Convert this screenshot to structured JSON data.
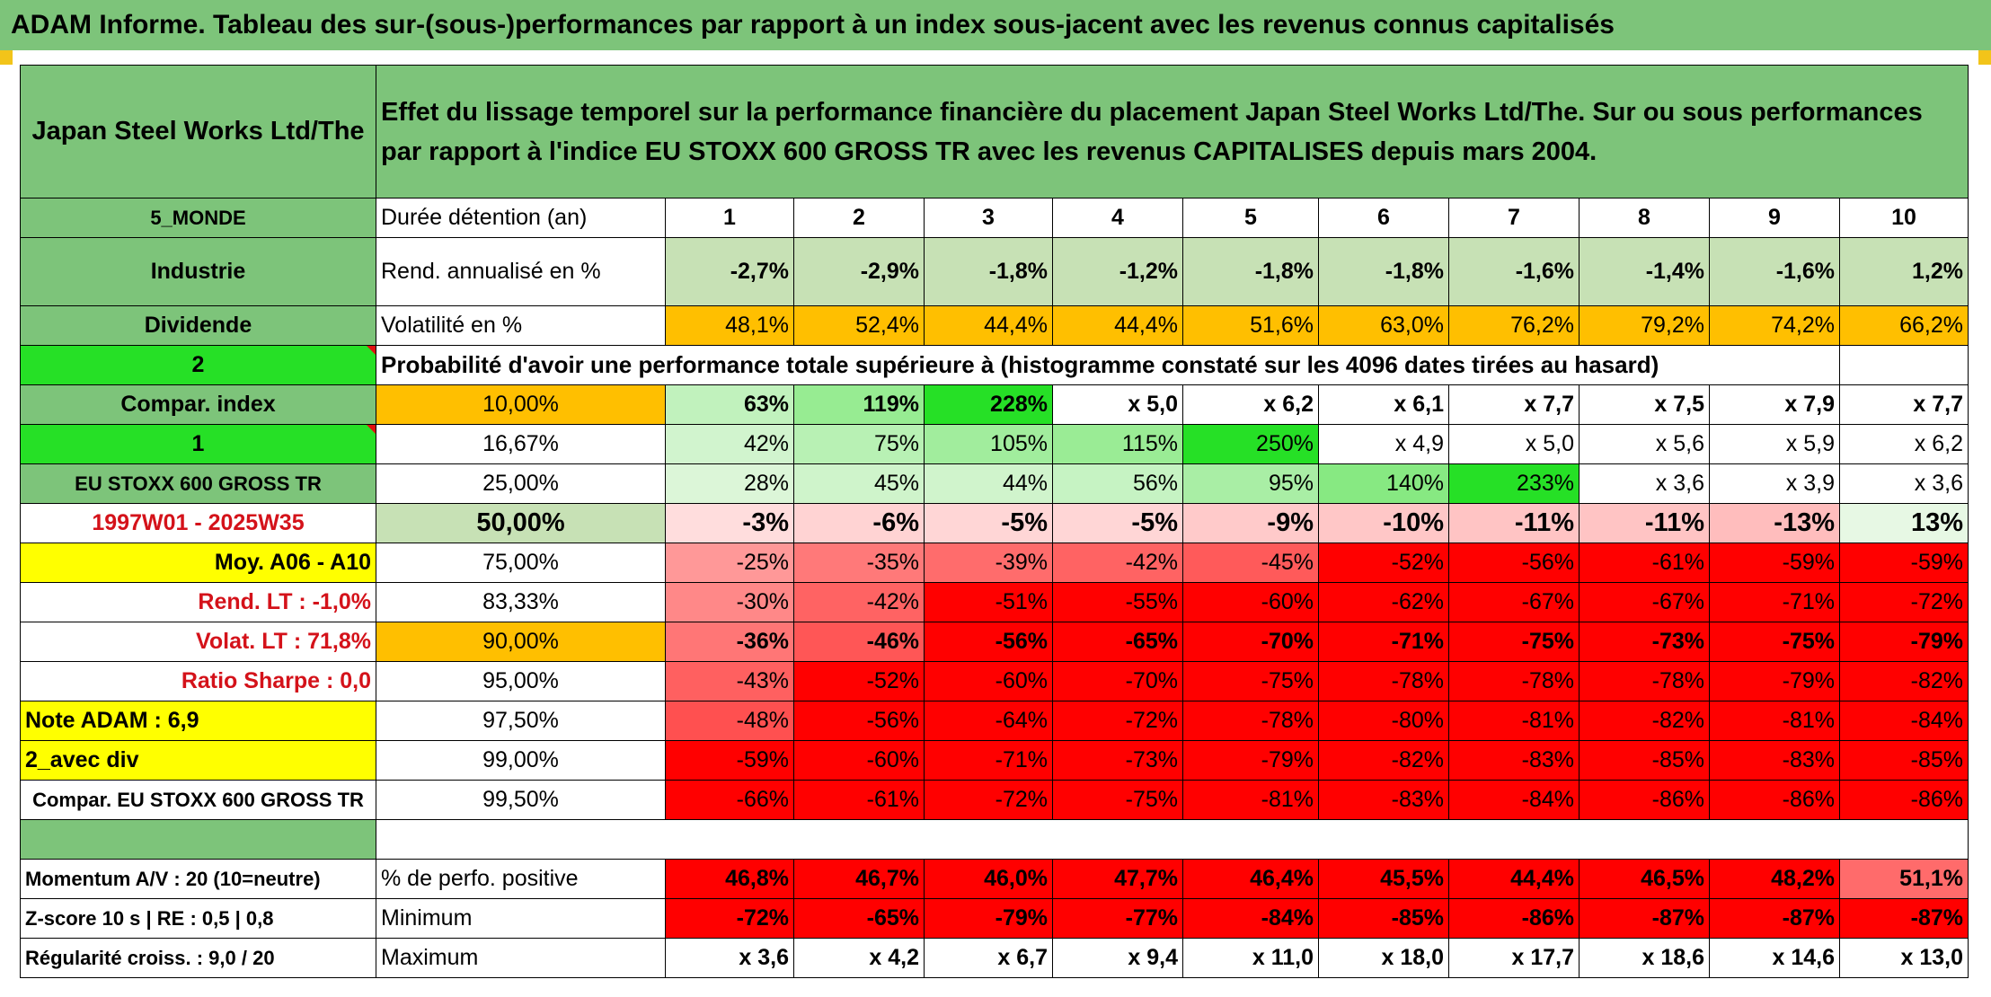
{
  "title": "ADAM Informe. Tableau des sur-(sous-)performances par rapport à un index sous-jacent avec les revenus connus capitalisés",
  "header": {
    "asset_name": "Japan Steel Works Ltd/The",
    "description": "Effet du lissage temporel sur la performance financière du placement Japan Steel Works Ltd/The. Sur ou sous performances par rapport à l'indice EU STOXX 600 GROSS TR avec les revenus CAPITALISES depuis mars 2004."
  },
  "left_labels": {
    "region": "5_MONDE",
    "sector": "Industrie",
    "dividend": "Dividende",
    "sel1": "2",
    "compar_index": "Compar. index",
    "sel2": "1",
    "index_name": "EU STOXX 600 GROSS TR",
    "period": "1997W01 - 2025W35",
    "moy": "Moy. A06 - A10",
    "rend_lt": "Rend. LT :    -1,0%",
    "volat_lt": "Volat. LT :   71,8%",
    "sharpe": "Ratio Sharpe :    0,0",
    "note": "Note ADAM : 6,9",
    "div_mode": "2_avec div",
    "compar_full": "Compar. EU STOXX 600 GROSS TR",
    "momentum": "Momentum A/V : 20 (10=neutre)",
    "zscore": "Z-score 10 s | RE : 0,5 | 0,8",
    "regularite": "Régularité croiss. : 9,0 / 20"
  },
  "row_labels": {
    "duree": "Durée détention (an)",
    "rend": "Rend. annualisé en %",
    "vol": "Volatilité en %",
    "prob_title": "Probabilité d'avoir une performance totale supérieure à (histogramme constaté sur les 4096 dates tirées au hasard)",
    "pct_pos": "% de perfo. positive",
    "minimum": "Minimum",
    "maximum": "Maximum"
  },
  "colors": {
    "green": "#7dc47a",
    "light_green": "#c7e1b5",
    "bright_green": "#26e026",
    "yellow": "#ffff00",
    "orange": "#ffbf00",
    "red": "#ff0000",
    "label_red": "#d4121a"
  },
  "chart_data": {
    "type": "table",
    "columns": [
      "1",
      "2",
      "3",
      "4",
      "5",
      "6",
      "7",
      "8",
      "9",
      "10"
    ],
    "rend_annualise": [
      "-2,7%",
      "-2,9%",
      "-1,8%",
      "-1,2%",
      "-1,8%",
      "-1,8%",
      "-1,6%",
      "-1,4%",
      "-1,6%",
      "1,2%"
    ],
    "volatilite": [
      "48,1%",
      "52,4%",
      "44,4%",
      "44,4%",
      "51,6%",
      "63,0%",
      "76,2%",
      "79,2%",
      "74,2%",
      "66,2%"
    ],
    "probability_rows": [
      {
        "level": "10,00%",
        "values": [
          "63%",
          "119%",
          "228%",
          "x 5,0",
          "x 6,2",
          "x 6,1",
          "x 7,7",
          "x 7,5",
          "x 7,9",
          "x 7,7"
        ]
      },
      {
        "level": "16,67%",
        "values": [
          "42%",
          "75%",
          "105%",
          "115%",
          "250%",
          "x 4,9",
          "x 5,0",
          "x 5,6",
          "x 5,9",
          "x 6,2"
        ]
      },
      {
        "level": "25,00%",
        "values": [
          "28%",
          "45%",
          "44%",
          "56%",
          "95%",
          "140%",
          "233%",
          "x 3,6",
          "x 3,9",
          "x 3,6"
        ]
      },
      {
        "level": "50,00%",
        "values": [
          "-3%",
          "-6%",
          "-5%",
          "-5%",
          "-9%",
          "-10%",
          "-11%",
          "-11%",
          "-13%",
          "13%"
        ]
      },
      {
        "level": "75,00%",
        "values": [
          "-25%",
          "-35%",
          "-39%",
          "-42%",
          "-45%",
          "-52%",
          "-56%",
          "-61%",
          "-59%",
          "-59%"
        ]
      },
      {
        "level": "83,33%",
        "values": [
          "-30%",
          "-42%",
          "-51%",
          "-55%",
          "-60%",
          "-62%",
          "-67%",
          "-67%",
          "-71%",
          "-72%"
        ]
      },
      {
        "level": "90,00%",
        "values": [
          "-36%",
          "-46%",
          "-56%",
          "-65%",
          "-70%",
          "-71%",
          "-75%",
          "-73%",
          "-75%",
          "-79%"
        ]
      },
      {
        "level": "95,00%",
        "values": [
          "-43%",
          "-52%",
          "-60%",
          "-70%",
          "-75%",
          "-78%",
          "-78%",
          "-78%",
          "-79%",
          "-82%"
        ]
      },
      {
        "level": "97,50%",
        "values": [
          "-48%",
          "-56%",
          "-64%",
          "-72%",
          "-78%",
          "-80%",
          "-81%",
          "-82%",
          "-81%",
          "-84%"
        ]
      },
      {
        "level": "99,00%",
        "values": [
          "-59%",
          "-60%",
          "-71%",
          "-73%",
          "-79%",
          "-82%",
          "-83%",
          "-85%",
          "-83%",
          "-85%"
        ]
      },
      {
        "level": "99,50%",
        "values": [
          "-66%",
          "-61%",
          "-72%",
          "-75%",
          "-81%",
          "-83%",
          "-84%",
          "-86%",
          "-86%",
          "-86%"
        ]
      }
    ],
    "pct_perfo_positive": [
      "46,8%",
      "46,7%",
      "46,0%",
      "47,7%",
      "46,4%",
      "45,5%",
      "44,4%",
      "46,5%",
      "48,2%",
      "51,1%"
    ],
    "minimum": [
      "-72%",
      "-65%",
      "-79%",
      "-77%",
      "-84%",
      "-85%",
      "-86%",
      "-87%",
      "-87%",
      "-87%"
    ],
    "maximum": [
      "x 3,6",
      "x 4,2",
      "x 6,7",
      "x 9,4",
      "x 11,0",
      "x 18,0",
      "x 17,7",
      "x 18,6",
      "x 14,6",
      "x 13,0"
    ]
  }
}
